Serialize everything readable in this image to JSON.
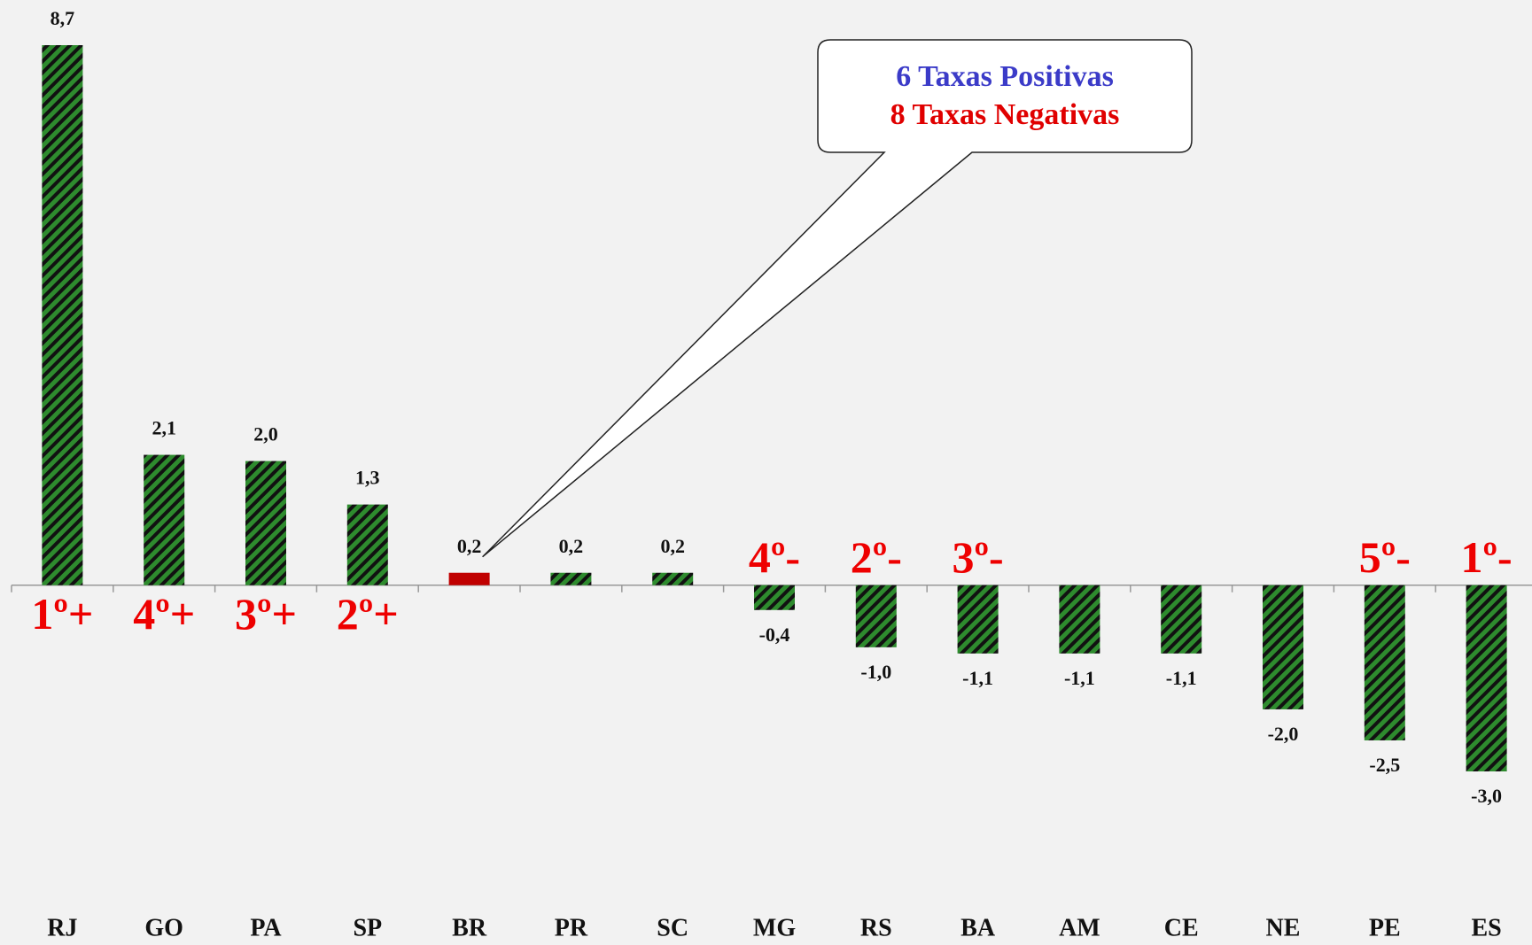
{
  "chart_data": {
    "type": "bar",
    "categories": [
      "RJ",
      "GO",
      "PA",
      "SP",
      "BR",
      "PR",
      "SC",
      "MG",
      "RS",
      "BA",
      "AM",
      "CE",
      "NE",
      "PE",
      "ES"
    ],
    "values": [
      8.7,
      2.1,
      2.0,
      1.3,
      0.2,
      0.2,
      0.2,
      -0.4,
      -1.0,
      -1.1,
      -1.1,
      -1.1,
      -2.0,
      -2.5,
      -3.0
    ],
    "value_labels": [
      "8,7",
      "2,1",
      "2,0",
      "1,3",
      "0,2",
      "0,2",
      "0,2",
      "-0,4",
      "-1,0",
      "-1,1",
      "-1,1",
      "-1,1",
      "-2,0",
      "-2,5",
      "-3,0"
    ],
    "colors": [
      "#2e8b2e",
      "#2e8b2e",
      "#2e8b2e",
      "#2e8b2e",
      "#c00000",
      "#2e8b2e",
      "#2e8b2e",
      "#2e8b2e",
      "#2e8b2e",
      "#2e8b2e",
      "#2e8b2e",
      "#2e8b2e",
      "#2e8b2e",
      "#2e8b2e",
      "#2e8b2e"
    ],
    "annotations": [
      {
        "text": "1º+",
        "category": "RJ"
      },
      {
        "text": "4º+",
        "category": "GO"
      },
      {
        "text": "3º+",
        "category": "PA"
      },
      {
        "text": "2º+",
        "category": "SP"
      },
      {
        "text": "4º-",
        "category": "MG"
      },
      {
        "text": "2º-",
        "category": "RS"
      },
      {
        "text": "3º-",
        "category": "BA"
      },
      {
        "text": "5º-",
        "category": "PE"
      },
      {
        "text": "1º-",
        "category": "ES"
      }
    ],
    "callout": {
      "lines": [
        {
          "text": "6 Taxas Positivas",
          "color": "#3b3bc8"
        },
        {
          "text": "8 Taxas Negativas",
          "color": "#e00000"
        }
      ],
      "category": "BR"
    }
  }
}
